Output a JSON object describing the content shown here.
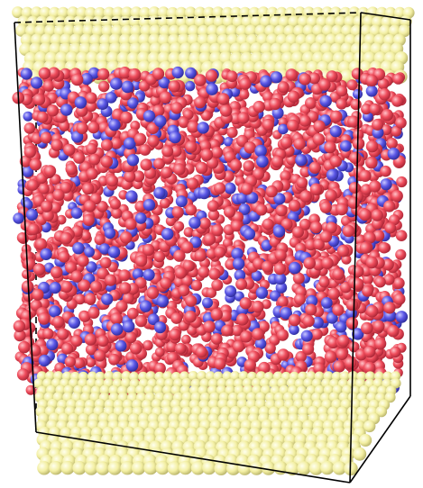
{
  "colors": {
    "background": "#ffffff",
    "wall_atom": "#f3efa2",
    "wall_atom_shade": "#b8b36a",
    "red_atom": "#ef4d5c",
    "red_atom_shade": "#a82434",
    "blue_atom": "#5b57e6",
    "blue_atom_shade": "#2c2a98",
    "box_edge": "#000000"
  },
  "scene": {
    "layers": [
      "top-wall",
      "liquid-region",
      "bottom-wall"
    ],
    "liquid_blue_fraction": 0.2
  }
}
